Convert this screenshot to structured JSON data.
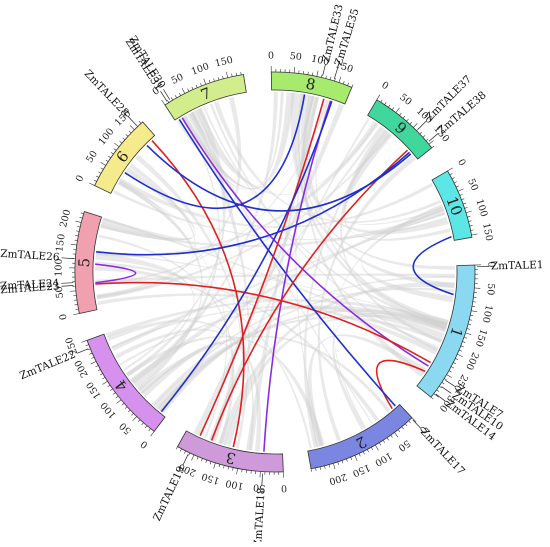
{
  "chromosomes": [
    {
      "id": "1",
      "length": 310,
      "color": "#8ad9f0",
      "ticks": [
        0,
        50,
        100,
        150,
        200,
        250,
        300
      ]
    },
    {
      "id": "2",
      "length": 250,
      "color": "#7b86e0",
      "ticks": [
        0,
        50,
        100,
        150,
        200
      ]
    },
    {
      "id": "3",
      "length": 240,
      "color": "#cf9ad9",
      "ticks": [
        0,
        50,
        100,
        150,
        200
      ]
    },
    {
      "id": "4",
      "length": 250,
      "color": "#d690ee",
      "ticks": [
        0,
        50,
        100,
        150,
        200,
        250
      ]
    },
    {
      "id": "5",
      "length": 225,
      "color": "#f0a0ae",
      "ticks": [
        0,
        50,
        100,
        150,
        200
      ]
    },
    {
      "id": "6",
      "length": 175,
      "color": "#f5ea8c",
      "ticks": [
        0,
        50,
        100,
        150
      ]
    },
    {
      "id": "7",
      "length": 185,
      "color": "#d2ee8c",
      "ticks": [
        0,
        50,
        100,
        150
      ]
    },
    {
      "id": "8",
      "length": 180,
      "color": "#a6ea6e",
      "ticks": [
        0,
        50,
        100,
        150
      ]
    },
    {
      "id": "9",
      "length": 160,
      "color": "#3fd79c",
      "ticks": [
        0,
        50,
        100,
        150
      ]
    },
    {
      "id": "10",
      "length": 155,
      "color": "#5de6e6",
      "ticks": [
        0,
        50,
        100,
        150
      ]
    }
  ],
  "genes": [
    {
      "name": "ZmTALE1",
      "chr": "1",
      "pos": 4
    },
    {
      "name": "ZmTALE7",
      "chr": "1",
      "pos": 262
    },
    {
      "name": "ZmTALE10",
      "chr": "1",
      "pos": 278
    },
    {
      "name": "ZmTALE14",
      "chr": "1",
      "pos": 298
    },
    {
      "name": "ZmTALE17",
      "chr": "2",
      "pos": 2
    },
    {
      "name": "ZmTALE18",
      "chr": "3",
      "pos": 45
    },
    {
      "name": "ZmTALE19",
      "chr": "3",
      "pos": 212
    },
    {
      "name": "ZmTALE22",
      "chr": "4",
      "pos": 232
    },
    {
      "name": "ZmTALE23",
      "chr": "5",
      "pos": 62
    },
    {
      "name": "ZmTALE24",
      "chr": "5",
      "pos": 68
    },
    {
      "name": "ZmTALE26",
      "chr": "5",
      "pos": 120
    },
    {
      "name": "ZmTALE28",
      "chr": "6",
      "pos": 160
    },
    {
      "name": "ZmTALE30",
      "chr": "7",
      "pos": 15
    },
    {
      "name": "ZmTALE31",
      "chr": "7",
      "pos": 8
    },
    {
      "name": "ZmTALE33",
      "chr": "8",
      "pos": 112
    },
    {
      "name": "ZmTALE35",
      "chr": "8",
      "pos": 138
    },
    {
      "name": "ZmTALE37",
      "chr": "9",
      "pos": 110
    },
    {
      "name": "ZmTALE38",
      "chr": "9",
      "pos": 145
    }
  ],
  "links": [
    {
      "a": {
        "chr": "1",
        "pos": 255
      },
      "b": {
        "chr": "7",
        "pos": 18
      },
      "color": "#8a2be2"
    },
    {
      "a": {
        "chr": "1",
        "pos": 245
      },
      "b": {
        "chr": "5",
        "pos": 62
      },
      "color": "#e02020"
    },
    {
      "a": {
        "chr": "1",
        "pos": 70
      },
      "b": {
        "chr": "10",
        "pos": 145
      },
      "color": "#1f2fd0"
    },
    {
      "a": {
        "chr": "2",
        "pos": 20
      },
      "b": {
        "chr": "1",
        "pos": 270
      },
      "color": "#e02020"
    },
    {
      "a": {
        "chr": "2",
        "pos": 10
      },
      "b": {
        "chr": "7",
        "pos": 10
      },
      "color": "#1f2fd0"
    },
    {
      "a": {
        "chr": "3",
        "pos": 45
      },
      "b": {
        "chr": "8",
        "pos": 145
      },
      "color": "#8a2be2"
    },
    {
      "a": {
        "chr": "3",
        "pos": 205
      },
      "b": {
        "chr": "8",
        "pos": 128
      },
      "color": "#e02020"
    },
    {
      "a": {
        "chr": "3",
        "pos": 175
      },
      "b": {
        "chr": "9",
        "pos": 128
      },
      "color": "#e02020"
    },
    {
      "a": {
        "chr": "3",
        "pos": 120
      },
      "b": {
        "chr": "6",
        "pos": 162
      },
      "color": "#e02020"
    },
    {
      "a": {
        "chr": "4",
        "pos": 15
      },
      "b": {
        "chr": "8",
        "pos": 148
      },
      "color": "#1f2fd0"
    },
    {
      "a": {
        "chr": "5",
        "pos": 65
      },
      "b": {
        "chr": "5",
        "pos": 110
      },
      "color": "#8a2be2"
    },
    {
      "a": {
        "chr": "5",
        "pos": 140
      },
      "b": {
        "chr": "9",
        "pos": 135
      },
      "color": "#1f2fd0"
    },
    {
      "a": {
        "chr": "6",
        "pos": 145
      },
      "b": {
        "chr": "9",
        "pos": 140
      },
      "color": "#1f2fd0"
    },
    {
      "a": {
        "chr": "6",
        "pos": 60
      },
      "b": {
        "chr": "8",
        "pos": 80
      },
      "color": "#1f2fd0"
    }
  ]
}
